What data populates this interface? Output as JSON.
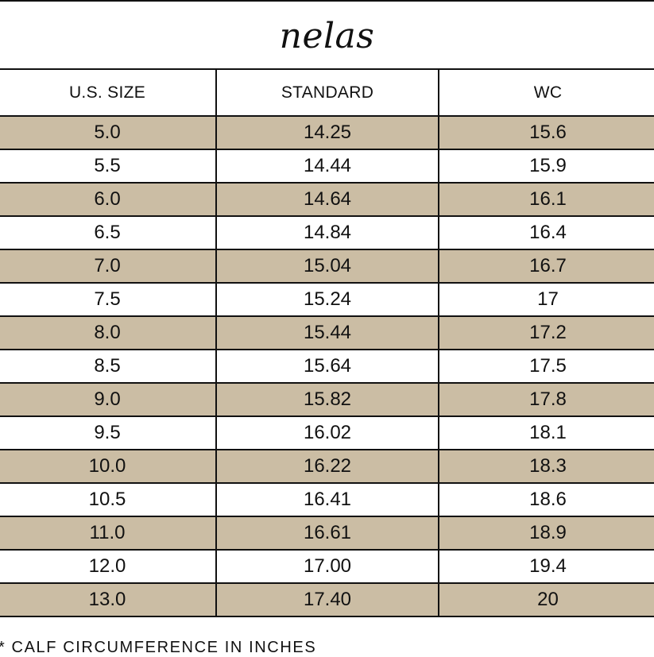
{
  "brand": "nelas",
  "table": {
    "headers": [
      "U.S. SIZE",
      "STANDARD",
      "WC"
    ],
    "rows": [
      [
        "5.0",
        "14.25",
        "15.6"
      ],
      [
        "5.5",
        "14.44",
        "15.9"
      ],
      [
        "6.0",
        "14.64",
        "16.1"
      ],
      [
        "6.5",
        "14.84",
        "16.4"
      ],
      [
        "7.0",
        "15.04",
        "16.7"
      ],
      [
        "7.5",
        "15.24",
        "17"
      ],
      [
        "8.0",
        "15.44",
        "17.2"
      ],
      [
        "8.5",
        "15.64",
        "17.5"
      ],
      [
        "9.0",
        "15.82",
        "17.8"
      ],
      [
        "9.5",
        "16.02",
        "18.1"
      ],
      [
        "10.0",
        "16.22",
        "18.3"
      ],
      [
        "10.5",
        "16.41",
        "18.6"
      ],
      [
        "11.0",
        "16.61",
        "18.9"
      ],
      [
        "12.0",
        "17.00",
        "19.4"
      ],
      [
        "13.0",
        "17.40",
        "20"
      ]
    ]
  },
  "footnote": "* CALF CIRCUMFERENCE IN INCHES",
  "colors": {
    "shaded_row": "#cbbda4",
    "plain_row": "#ffffff",
    "rule": "#111111"
  }
}
